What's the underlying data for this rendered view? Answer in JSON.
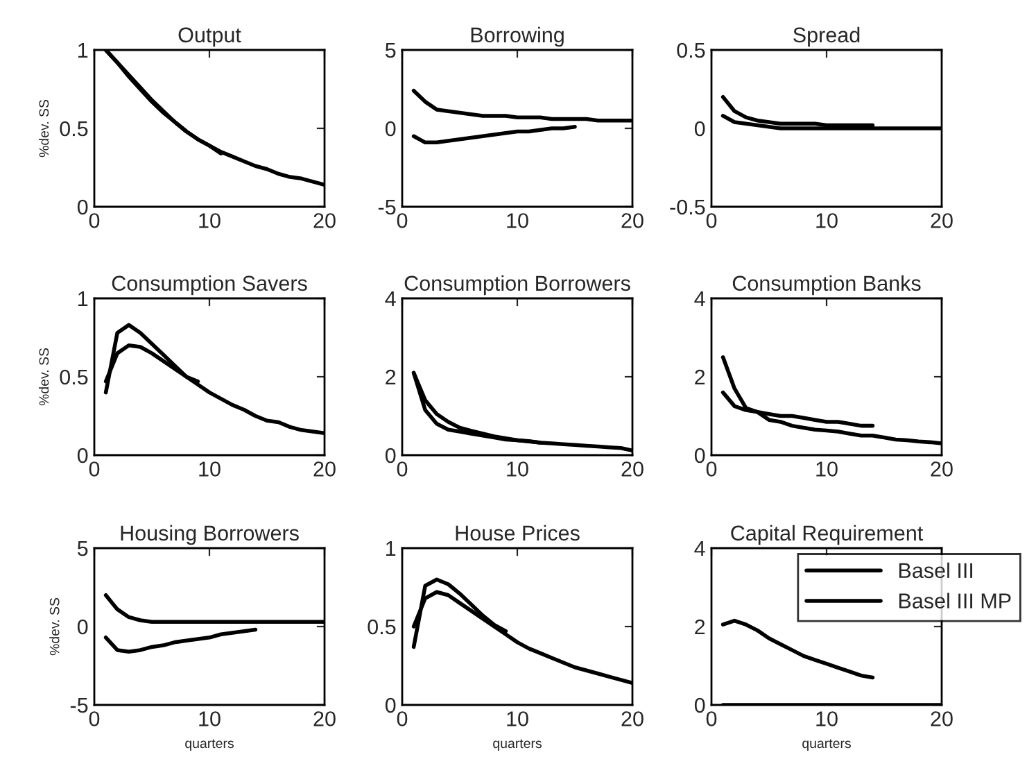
{
  "chart_data": [
    {
      "type": "line",
      "title": "Output",
      "ylabel": "%dev. SS",
      "xlim": [
        0,
        20
      ],
      "xticks": [
        0,
        10,
        20
      ],
      "ylim": [
        0,
        1
      ],
      "yticks": [
        0,
        0.5,
        1
      ],
      "series": [
        {
          "color": "#000000",
          "x": [
            1,
            2,
            3,
            4,
            5,
            6,
            7,
            8,
            9,
            10,
            11,
            12,
            13,
            14,
            15,
            16,
            17,
            18,
            19,
            20
          ],
          "values": [
            1,
            0.92,
            0.84,
            0.76,
            0.68,
            0.61,
            0.54,
            0.48,
            0.43,
            0.39,
            0.35,
            0.32,
            0.29,
            0.26,
            0.24,
            0.21,
            0.19,
            0.18,
            0.16,
            0.14
          ]
        },
        {
          "color": "#000000",
          "x": [
            1,
            2,
            3,
            4,
            5,
            6,
            7,
            8,
            9,
            10,
            11
          ],
          "values": [
            1,
            0.92,
            0.83,
            0.75,
            0.67,
            0.6,
            0.54,
            0.48,
            0.43,
            0.39,
            0.34
          ]
        }
      ]
    },
    {
      "type": "line",
      "title": "Borrowing",
      "xlim": [
        0,
        20
      ],
      "xticks": [
        0,
        10,
        20
      ],
      "ylim": [
        -5,
        5
      ],
      "yticks": [
        -5,
        0,
        5
      ],
      "series": [
        {
          "color": "#000000",
          "x": [
            1,
            2,
            3,
            4,
            5,
            6,
            7,
            8,
            9,
            10,
            11,
            12,
            13,
            14,
            15,
            16,
            17,
            18,
            19,
            20
          ],
          "values": [
            2.4,
            1.7,
            1.2,
            1.1,
            1.0,
            0.9,
            0.8,
            0.8,
            0.8,
            0.7,
            0.7,
            0.7,
            0.6,
            0.6,
            0.6,
            0.6,
            0.5,
            0.5,
            0.5,
            0.5
          ]
        },
        {
          "color": "#000000",
          "x": [
            1,
            2,
            3,
            4,
            5,
            6,
            7,
            8,
            9,
            10,
            11,
            12,
            13,
            14,
            15
          ],
          "values": [
            -0.5,
            -0.9,
            -0.9,
            -0.8,
            -0.7,
            -0.6,
            -0.5,
            -0.4,
            -0.3,
            -0.2,
            -0.2,
            -0.1,
            0,
            0,
            0.1
          ]
        }
      ]
    },
    {
      "type": "line",
      "title": "Spread",
      "xlim": [
        0,
        20
      ],
      "xticks": [
        0,
        10,
        20
      ],
      "ylim": [
        -0.5,
        0.5
      ],
      "yticks": [
        -0.5,
        0,
        0.5
      ],
      "series": [
        {
          "color": "#000000",
          "x": [
            1,
            2,
            3,
            4,
            5,
            6,
            7,
            8,
            9,
            10,
            11,
            12,
            13,
            14,
            15,
            16,
            17,
            18,
            19,
            20
          ],
          "values": [
            0.08,
            0.04,
            0.03,
            0.02,
            0.01,
            0,
            0,
            0,
            0,
            0,
            0,
            0,
            0,
            0,
            0,
            0,
            0,
            0,
            0,
            0
          ]
        },
        {
          "color": "#000000",
          "x": [
            1,
            2,
            3,
            4,
            5,
            6,
            7,
            8,
            9,
            10,
            11,
            12,
            13,
            14
          ],
          "values": [
            0.2,
            0.11,
            0.07,
            0.05,
            0.04,
            0.03,
            0.03,
            0.03,
            0.03,
            0.02,
            0.02,
            0.02,
            0.02,
            0.02
          ]
        }
      ]
    },
    {
      "type": "line",
      "title": "Consumption Savers",
      "ylabel": "%dev. SS",
      "xlim": [
        0,
        20
      ],
      "xticks": [
        0,
        10,
        20
      ],
      "ylim": [
        0,
        1
      ],
      "yticks": [
        0,
        0.5,
        1
      ],
      "series": [
        {
          "color": "#000000",
          "x": [
            1,
            2,
            3,
            4,
            5,
            6,
            7,
            8,
            9,
            10,
            11,
            12,
            13,
            14,
            15,
            16,
            17,
            18,
            19,
            20
          ],
          "values": [
            0.47,
            0.65,
            0.7,
            0.69,
            0.65,
            0.6,
            0.55,
            0.5,
            0.45,
            0.4,
            0.36,
            0.32,
            0.29,
            0.25,
            0.22,
            0.21,
            0.18,
            0.16,
            0.15,
            0.14
          ]
        },
        {
          "color": "#000000",
          "x": [
            1,
            2,
            3,
            4,
            5,
            6,
            7,
            8,
            9
          ],
          "values": [
            0.4,
            0.78,
            0.83,
            0.78,
            0.71,
            0.64,
            0.57,
            0.5,
            0.47
          ]
        }
      ]
    },
    {
      "type": "line",
      "title": "Consumption Borrowers",
      "xlim": [
        0,
        20
      ],
      "xticks": [
        0,
        10,
        20
      ],
      "ylim": [
        0,
        4
      ],
      "yticks": [
        0,
        2,
        4
      ],
      "series": [
        {
          "color": "#000000",
          "x": [
            1,
            2,
            3,
            4,
            5,
            6,
            7,
            8,
            9,
            10,
            11,
            12,
            13,
            14,
            15,
            16,
            17,
            18,
            19,
            20
          ],
          "values": [
            2.1,
            1.4,
            1.05,
            0.85,
            0.7,
            0.62,
            0.55,
            0.48,
            0.43,
            0.38,
            0.35,
            0.32,
            0.3,
            0.28,
            0.26,
            0.24,
            0.22,
            0.2,
            0.18,
            0.12
          ]
        },
        {
          "color": "#000000",
          "x": [
            1,
            2,
            3,
            4,
            5,
            6,
            7,
            8,
            9,
            10,
            11,
            12
          ],
          "values": [
            2.1,
            1.15,
            0.8,
            0.65,
            0.6,
            0.55,
            0.5,
            0.45,
            0.4,
            0.38,
            0.36,
            0.32
          ]
        }
      ]
    },
    {
      "type": "line",
      "title": "Consumption Banks",
      "xlim": [
        0,
        20
      ],
      "xticks": [
        0,
        10,
        20
      ],
      "ylim": [
        0,
        4
      ],
      "yticks": [
        0,
        2,
        4
      ],
      "series": [
        {
          "color": "#000000",
          "x": [
            1,
            2,
            3,
            4,
            5,
            6,
            7,
            8,
            9,
            10,
            11,
            12,
            13,
            14,
            15,
            16,
            17,
            18,
            19,
            20
          ],
          "values": [
            2.5,
            1.7,
            1.2,
            1.1,
            0.9,
            0.85,
            0.75,
            0.7,
            0.65,
            0.63,
            0.6,
            0.55,
            0.5,
            0.5,
            0.45,
            0.4,
            0.38,
            0.35,
            0.33,
            0.3
          ]
        },
        {
          "color": "#000000",
          "x": [
            1,
            2,
            3,
            4,
            5,
            6,
            7,
            8,
            9,
            10,
            11,
            12,
            13,
            14
          ],
          "values": [
            1.6,
            1.25,
            1.15,
            1.1,
            1.05,
            1.0,
            1.0,
            0.95,
            0.9,
            0.85,
            0.85,
            0.8,
            0.75,
            0.75
          ]
        }
      ]
    },
    {
      "type": "line",
      "title": "Housing Borrowers",
      "ylabel": "%dev. SS",
      "xlabel": "quarters",
      "xlim": [
        0,
        20
      ],
      "xticks": [
        0,
        10,
        20
      ],
      "ylim": [
        -5,
        5
      ],
      "yticks": [
        -5,
        0,
        5
      ],
      "series": [
        {
          "color": "#000000",
          "x": [
            1,
            2,
            3,
            4,
            5,
            6,
            7,
            8,
            9,
            10,
            11,
            12,
            13,
            14,
            15,
            16,
            17,
            18,
            19,
            20
          ],
          "values": [
            2.0,
            1.1,
            0.6,
            0.4,
            0.3,
            0.3,
            0.3,
            0.3,
            0.3,
            0.3,
            0.3,
            0.3,
            0.3,
            0.3,
            0.3,
            0.3,
            0.3,
            0.3,
            0.3,
            0.3
          ]
        },
        {
          "color": "#000000",
          "x": [
            1,
            2,
            3,
            4,
            5,
            6,
            7,
            8,
            9,
            10,
            11,
            12,
            13,
            14
          ],
          "values": [
            -0.7,
            -1.5,
            -1.6,
            -1.5,
            -1.3,
            -1.2,
            -1.0,
            -0.9,
            -0.8,
            -0.7,
            -0.5,
            -0.4,
            -0.3,
            -0.2
          ]
        }
      ]
    },
    {
      "type": "line",
      "title": "House Prices",
      "xlabel": "quarters",
      "xlim": [
        0,
        20
      ],
      "xticks": [
        0,
        10,
        20
      ],
      "ylim": [
        0,
        1
      ],
      "yticks": [
        0,
        0.5,
        1
      ],
      "series": [
        {
          "color": "#000000",
          "x": [
            1,
            2,
            3,
            4,
            5,
            6,
            7,
            8,
            9,
            10,
            11,
            12,
            13,
            14,
            15,
            16,
            17,
            18,
            19,
            20
          ],
          "values": [
            0.5,
            0.68,
            0.72,
            0.7,
            0.65,
            0.6,
            0.55,
            0.5,
            0.45,
            0.4,
            0.36,
            0.33,
            0.3,
            0.27,
            0.24,
            0.22,
            0.2,
            0.18,
            0.16,
            0.14
          ]
        },
        {
          "color": "#000000",
          "x": [
            1,
            2,
            3,
            4,
            5,
            6,
            7,
            8,
            9
          ],
          "values": [
            0.37,
            0.76,
            0.8,
            0.77,
            0.71,
            0.64,
            0.57,
            0.51,
            0.47
          ]
        }
      ]
    },
    {
      "type": "line",
      "title": "Capital Requirement",
      "xlabel": "quarters",
      "xlim": [
        0,
        20
      ],
      "xticks": [
        0,
        10,
        20
      ],
      "ylim": [
        0,
        4
      ],
      "yticks": [
        0,
        2,
        4
      ],
      "legend": "top right",
      "series": [
        {
          "name": "Basel III",
          "color": "#000000",
          "x": [
            1,
            2,
            3,
            4,
            5,
            6,
            7,
            8,
            9,
            10,
            11,
            12,
            13,
            14,
            15,
            16,
            17,
            18,
            19,
            20
          ],
          "values": [
            0,
            0,
            0,
            0,
            0,
            0,
            0,
            0,
            0,
            0,
            0,
            0,
            0,
            0,
            0,
            0,
            0,
            0,
            0,
            0
          ]
        },
        {
          "name": "Basel III MP",
          "color": "#000000",
          "x": [
            1,
            2,
            3,
            4,
            5,
            6,
            7,
            8,
            9,
            10,
            11,
            12,
            13,
            14
          ],
          "values": [
            2.05,
            2.15,
            2.05,
            1.9,
            1.7,
            1.55,
            1.4,
            1.25,
            1.15,
            1.05,
            0.95,
            0.85,
            0.75,
            0.7
          ]
        }
      ]
    }
  ]
}
